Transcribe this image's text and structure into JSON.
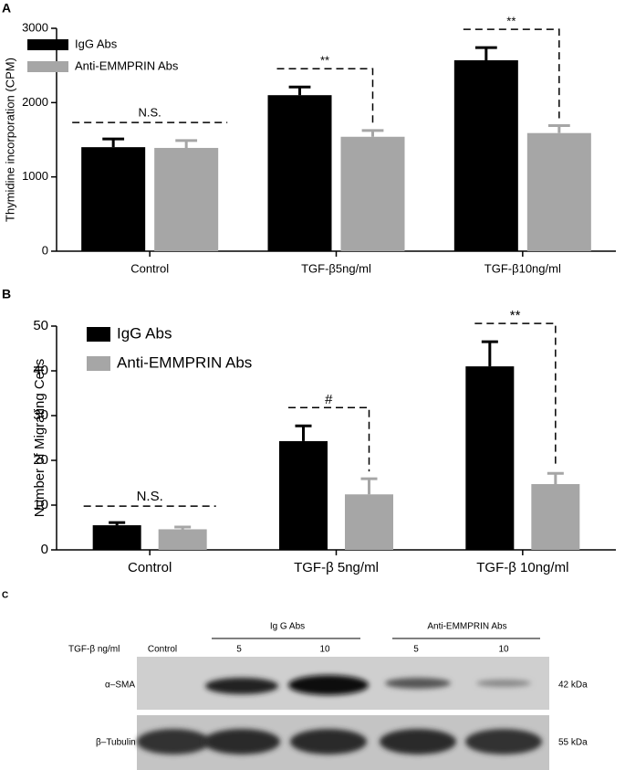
{
  "chart_data": [
    {
      "type": "bar",
      "panel_label": "A",
      "y_label": "Thymidine incorporation (CPM)",
      "categories": [
        "Control",
        "TGF-β5ng/ml",
        "TGF-β10ng/ml"
      ],
      "series": [
        {
          "name": "IgG Abs",
          "color": "#000000",
          "values": [
            1400,
            2100,
            2570
          ],
          "errors": [
            110,
            110,
            170
          ]
        },
        {
          "name": "Anti-EMMPRIN Abs",
          "color": "#a6a6a6",
          "values": [
            1390,
            1540,
            1590
          ],
          "errors": [
            100,
            85,
            100
          ]
        }
      ],
      "annotations": [
        "N.S.",
        "**",
        "**"
      ],
      "ylim": [
        0,
        3000
      ],
      "yticks": [
        0,
        1000,
        2000,
        3000
      ],
      "legend": "upper left"
    },
    {
      "type": "bar",
      "panel_label": "B",
      "y_label": "Number of Migrating Cells",
      "categories": [
        "Control",
        "TGF-β 5ng/ml",
        "TGF-β 10ng/ml"
      ],
      "series": [
        {
          "name": "IgG Abs",
          "color": "#000000",
          "values": [
            5.5,
            24.3,
            41.0
          ],
          "errors": [
            0.6,
            3.4,
            5.5
          ]
        },
        {
          "name": "Anti-EMMPRIN Abs",
          "color": "#a6a6a6",
          "values": [
            4.6,
            12.4,
            14.7
          ],
          "errors": [
            0.5,
            3.5,
            2.4
          ]
        }
      ],
      "annotations": [
        "N.S.",
        "#",
        "**"
      ],
      "ylim": [
        0,
        50
      ],
      "yticks": [
        0,
        10,
        20,
        30,
        40,
        50
      ],
      "legend": "upper left"
    }
  ],
  "blot": {
    "panel_label": "C",
    "group_labels": [
      "Ig G Abs",
      "Anti-EMMPRIN Abs"
    ],
    "dose_label": "TGF-β ng/ml",
    "lanes": [
      "Control",
      "5",
      "10",
      "5",
      "10"
    ],
    "rows": [
      "α–SMA",
      "β–Tubulin"
    ],
    "sizes": [
      "42 kDa",
      "55 kDa"
    ]
  }
}
